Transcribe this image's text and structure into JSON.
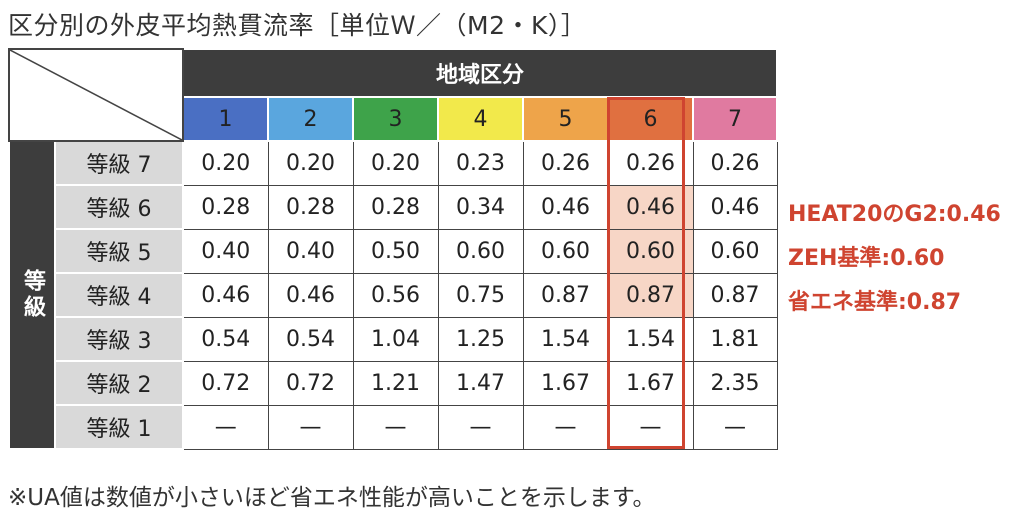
{
  "title": "区分別の外皮平均熱貫流率［単位Ｗ／（M2・K）］",
  "header": {
    "region": "地域区分",
    "grade_vertical": "等級"
  },
  "zones": [
    {
      "label": "1",
      "color": "#4a6fc3"
    },
    {
      "label": "2",
      "color": "#5aa6de"
    },
    {
      "label": "3",
      "color": "#3ea34a"
    },
    {
      "label": "4",
      "color": "#f2e94b"
    },
    {
      "label": "5",
      "color": "#eea44a"
    },
    {
      "label": "6",
      "color": "#e07040"
    },
    {
      "label": "7",
      "color": "#e07aa0"
    }
  ],
  "rows": [
    {
      "grade": "等級 7",
      "values": [
        "0.20",
        "0.20",
        "0.20",
        "0.23",
        "0.26",
        "0.26",
        "0.26"
      ]
    },
    {
      "grade": "等級 6",
      "values": [
        "0.28",
        "0.28",
        "0.28",
        "0.34",
        "0.46",
        "0.46",
        "0.46"
      ]
    },
    {
      "grade": "等級 5",
      "values": [
        "0.40",
        "0.40",
        "0.50",
        "0.60",
        "0.60",
        "0.60",
        "0.60"
      ]
    },
    {
      "grade": "等級 4",
      "values": [
        "0.46",
        "0.46",
        "0.56",
        "0.75",
        "0.87",
        "0.87",
        "0.87"
      ]
    },
    {
      "grade": "等級 3",
      "values": [
        "0.54",
        "0.54",
        "1.04",
        "1.25",
        "1.54",
        "1.54",
        "1.81"
      ]
    },
    {
      "grade": "等級 2",
      "values": [
        "0.72",
        "0.72",
        "1.21",
        "1.47",
        "1.67",
        "1.67",
        "2.35"
      ]
    },
    {
      "grade": "等級 1",
      "values": [
        "—",
        "—",
        "—",
        "—",
        "—",
        "—",
        "—"
      ]
    }
  ],
  "highlight": {
    "zone": "6",
    "color": "#cf4430",
    "fill": "#f7d6c6"
  },
  "notes": {
    "heat20": "HEAT20のG2:0.46",
    "zeh": "ZEH基準:0.60",
    "energy": "省エネ基準:0.87"
  },
  "footnote": "※UA値は数値が小さいほど省エネ性能が高いことを示します。"
}
